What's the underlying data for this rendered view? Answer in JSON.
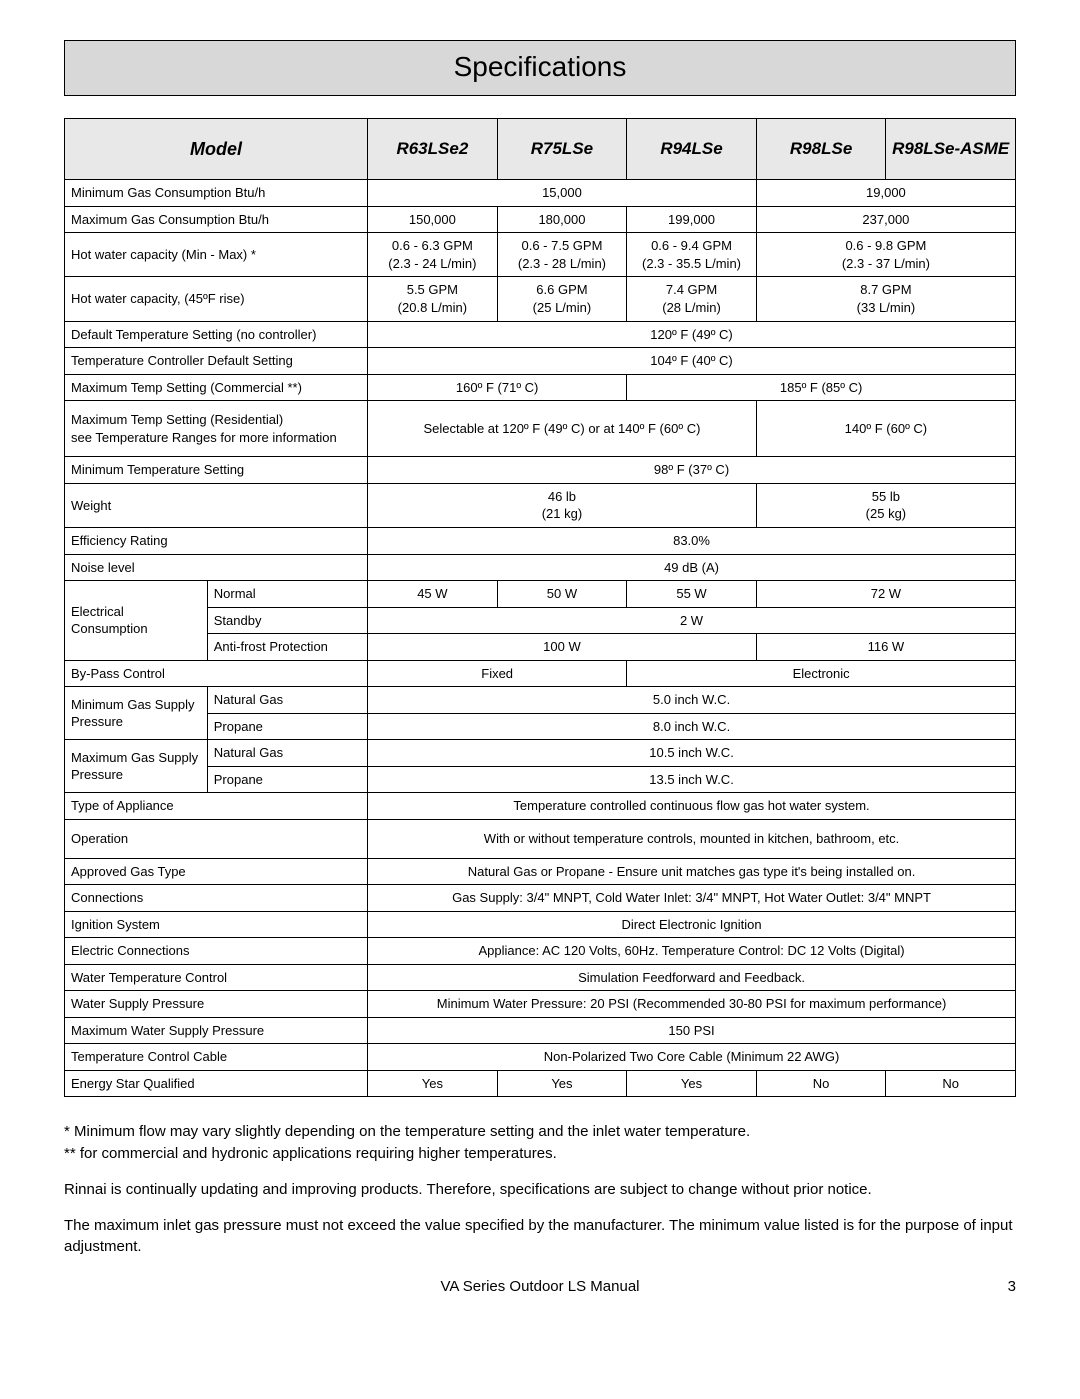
{
  "title": "Specifications",
  "header": {
    "model_label": "Model",
    "models": [
      "R63LSe2",
      "R75LSe",
      "R94LSe",
      "R98LSe",
      "R98LSe-ASME"
    ]
  },
  "col_widths": {
    "label_a": 130,
    "label_b": 146,
    "model": 118
  },
  "rows": [
    {
      "type": "simple",
      "label": "Minimum Gas Consumption Btu/h",
      "cells": [
        {
          "span": 3,
          "text": "15,000"
        },
        {
          "span": 2,
          "text": "19,000"
        }
      ],
      "tall": false
    },
    {
      "type": "simple",
      "label": "Maximum Gas Consumption Btu/h",
      "cells": [
        {
          "span": 1,
          "text": "150,000"
        },
        {
          "span": 1,
          "text": "180,000"
        },
        {
          "span": 1,
          "text": "199,000"
        },
        {
          "span": 2,
          "text": "237,000"
        }
      ]
    },
    {
      "type": "simple",
      "label": "Hot water capacity (Min - Max) *",
      "tall": true,
      "cells": [
        {
          "span": 1,
          "text": "0.6 - 6.3 GPM\n(2.3 - 24 L/min)"
        },
        {
          "span": 1,
          "text": "0.6 - 7.5 GPM\n(2.3 - 28 L/min)"
        },
        {
          "span": 1,
          "text": "0.6 - 9.4 GPM\n(2.3 - 35.5 L/min)"
        },
        {
          "span": 2,
          "text": "0.6 - 9.8 GPM\n(2.3 - 37 L/min)"
        }
      ]
    },
    {
      "type": "simple",
      "label": "Hot water capacity, (45ºF rise)",
      "tall": true,
      "cells": [
        {
          "span": 1,
          "text": "5.5 GPM\n(20.8 L/min)"
        },
        {
          "span": 1,
          "text": "6.6 GPM\n(25 L/min)"
        },
        {
          "span": 1,
          "text": "7.4 GPM\n(28 L/min)"
        },
        {
          "span": 2,
          "text": "8.7 GPM\n(33 L/min)"
        }
      ]
    },
    {
      "type": "simple",
      "label": "Default Temperature Setting (no controller)",
      "cells": [
        {
          "span": 5,
          "text": "120º F (49º C)"
        }
      ]
    },
    {
      "type": "simple",
      "label": "Temperature Controller Default Setting",
      "cells": [
        {
          "span": 5,
          "text": "104º F (40º C)"
        }
      ]
    },
    {
      "type": "simple",
      "label": "Maximum Temp Setting (Commercial **)",
      "cells": [
        {
          "span": 2,
          "text": "160º F (71º C)"
        },
        {
          "span": 3,
          "text": "185º F (85º C)"
        }
      ]
    },
    {
      "type": "simple",
      "label": "Maximum Temp Setting (Residential)\nsee Temperature Ranges for more information",
      "tall": true,
      "cells": [
        {
          "span": 3,
          "text": "Selectable at 120º F (49º C) or at 140º F (60º C)"
        },
        {
          "span": 2,
          "text": "140º F (60º C)"
        }
      ]
    },
    {
      "type": "simple",
      "label": "Minimum Temperature Setting",
      "cells": [
        {
          "span": 5,
          "text": "98º F (37º C)"
        }
      ]
    },
    {
      "type": "simple",
      "label": "Weight",
      "tall": true,
      "cells": [
        {
          "span": 3,
          "text": "46 lb\n(21 kg)"
        },
        {
          "span": 2,
          "text": "55 lb\n(25 kg)"
        }
      ]
    },
    {
      "type": "simple",
      "label": "Efficiency Rating",
      "cells": [
        {
          "span": 5,
          "text": "83.0%"
        }
      ]
    },
    {
      "type": "simple",
      "label": "Noise level",
      "cells": [
        {
          "span": 5,
          "text": "49 dB (A)"
        }
      ]
    },
    {
      "type": "group",
      "group_label": "Electrical\nConsumption",
      "rows": [
        {
          "sub": "Normal",
          "cells": [
            {
              "span": 1,
              "text": "45 W"
            },
            {
              "span": 1,
              "text": "50 W"
            },
            {
              "span": 1,
              "text": "55 W"
            },
            {
              "span": 2,
              "text": "72 W"
            }
          ]
        },
        {
          "sub": "Standby",
          "cells": [
            {
              "span": 5,
              "text": "2 W"
            }
          ]
        },
        {
          "sub": "Anti-frost Protection",
          "cells": [
            {
              "span": 3,
              "text": "100 W"
            },
            {
              "span": 2,
              "text": "116 W"
            }
          ]
        }
      ]
    },
    {
      "type": "simple",
      "label": "By-Pass Control",
      "cells": [
        {
          "span": 2,
          "text": "Fixed"
        },
        {
          "span": 3,
          "text": "Electronic"
        }
      ]
    },
    {
      "type": "group",
      "group_label": "Minimum Gas Supply Pressure",
      "rows": [
        {
          "sub": "Natural Gas",
          "cells": [
            {
              "span": 5,
              "text": "5.0 inch W.C."
            }
          ]
        },
        {
          "sub": "Propane",
          "cells": [
            {
              "span": 5,
              "text": "8.0 inch W.C."
            }
          ]
        }
      ]
    },
    {
      "type": "group",
      "group_label": "Maximum Gas Supply Pressure",
      "rows": [
        {
          "sub": "Natural Gas",
          "cells": [
            {
              "span": 5,
              "text": "10.5 inch W.C."
            }
          ]
        },
        {
          "sub": "Propane",
          "cells": [
            {
              "span": 5,
              "text": "13.5 inch W.C."
            }
          ]
        }
      ]
    },
    {
      "type": "simple",
      "label": "Type of Appliance",
      "cells": [
        {
          "span": 5,
          "text": "Temperature controlled continuous flow gas hot water system."
        }
      ]
    },
    {
      "type": "simple",
      "label": "Operation",
      "tall": true,
      "cells": [
        {
          "span": 5,
          "text": "With or without temperature controls, mounted in kitchen, bathroom, etc."
        }
      ]
    },
    {
      "type": "simple",
      "label": "Approved Gas Type",
      "cells": [
        {
          "span": 5,
          "text": "Natural Gas or Propane - Ensure unit matches gas type it's being installed on."
        }
      ]
    },
    {
      "type": "simple",
      "label": "Connections",
      "cells": [
        {
          "span": 5,
          "text": "Gas Supply: 3/4\" MNPT, Cold Water Inlet: 3/4\" MNPT, Hot Water Outlet: 3/4\" MNPT"
        }
      ]
    },
    {
      "type": "simple",
      "label": "Ignition System",
      "cells": [
        {
          "span": 5,
          "text": "Direct Electronic Ignition"
        }
      ]
    },
    {
      "type": "simple",
      "label": "Electric Connections",
      "cells": [
        {
          "span": 5,
          "text": "Appliance: AC 120 Volts, 60Hz. Temperature Control: DC 12 Volts (Digital)"
        }
      ]
    },
    {
      "type": "simple",
      "label": "Water Temperature Control",
      "cells": [
        {
          "span": 5,
          "text": "Simulation Feedforward and Feedback."
        }
      ]
    },
    {
      "type": "simple",
      "label": "Water Supply Pressure",
      "cells": [
        {
          "span": 5,
          "text": "Minimum Water Pressure: 20 PSI (Recommended 30-80 PSI for maximum performance)"
        }
      ]
    },
    {
      "type": "simple",
      "label": "Maximum Water Supply Pressure",
      "cells": [
        {
          "span": 5,
          "text": "150 PSI"
        }
      ]
    },
    {
      "type": "simple",
      "label": "Temperature Control Cable",
      "cells": [
        {
          "span": 5,
          "text": "Non-Polarized Two Core Cable (Minimum 22 AWG)"
        }
      ]
    },
    {
      "type": "simple",
      "label": "Energy Star Qualified",
      "cells": [
        {
          "span": 1,
          "text": "Yes"
        },
        {
          "span": 1,
          "text": "Yes"
        },
        {
          "span": 1,
          "text": "Yes"
        },
        {
          "span": 1,
          "text": "No"
        },
        {
          "span": 1,
          "text": "No"
        }
      ]
    }
  ],
  "notes": [
    "* Minimum flow may vary slightly depending on the temperature setting and the inlet water temperature.\n** for commercial and hydronic applications requiring higher temperatures.",
    "Rinnai is continually updating and improving products.  Therefore, specifications are subject to change without prior notice.",
    "The maximum inlet gas pressure must not exceed the value specified by the manufacturer.  The minimum value listed is for the purpose of input adjustment."
  ],
  "footer": {
    "center": "VA Series Outdoor LS Manual",
    "page": "3"
  },
  "colors": {
    "header_bg": "#e8e8e8",
    "title_bg": "#d8d8d8",
    "border": "#000000",
    "text": "#000000"
  }
}
